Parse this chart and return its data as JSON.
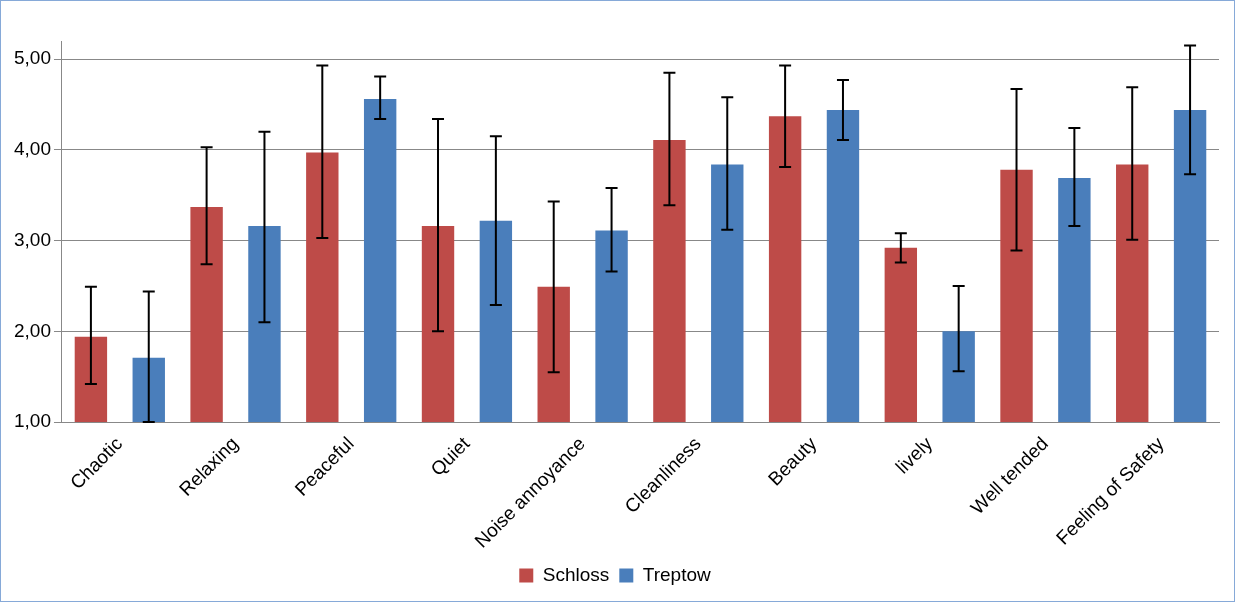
{
  "chart_data": {
    "type": "bar",
    "categories": [
      "Chaotic",
      "Relaxing",
      "Peaceful",
      "Quiet",
      "Noise annoyance",
      "Cleanliness",
      "Beauty",
      "lively",
      "Well tended",
      "Feeling of Safety"
    ],
    "series": [
      {
        "name": "Schloss",
        "color": "#be4b48",
        "values": [
          1.94,
          3.37,
          3.97,
          3.16,
          2.49,
          4.11,
          4.37,
          2.92,
          3.78,
          3.84
        ],
        "errors": [
          [
            1.42,
            2.49
          ],
          [
            2.74,
            4.03
          ],
          [
            3.03,
            4.93
          ],
          [
            2.0,
            4.34
          ],
          [
            1.55,
            3.43
          ],
          [
            3.39,
            4.85
          ],
          [
            3.81,
            4.93
          ],
          [
            2.76,
            3.08
          ],
          [
            2.89,
            4.67
          ],
          [
            3.01,
            4.69
          ]
        ]
      },
      {
        "name": "Treptow",
        "color": "#4a7ebb",
        "values": [
          1.71,
          3.16,
          4.56,
          3.22,
          3.11,
          3.84,
          4.44,
          2.0,
          3.69,
          4.44
        ],
        "errors": [
          [
            1.0,
            2.44
          ],
          [
            2.1,
            4.2
          ],
          [
            4.34,
            4.81
          ],
          [
            2.29,
            4.15
          ],
          [
            2.66,
            3.58
          ],
          [
            3.12,
            4.58
          ],
          [
            4.11,
            4.77
          ],
          [
            1.56,
            2.5
          ],
          [
            3.16,
            4.24
          ],
          [
            3.73,
            5.15
          ]
        ]
      }
    ],
    "ylim": [
      1,
      5.2
    ],
    "yticks": [
      {
        "value": 1,
        "label": "1,00"
      },
      {
        "value": 2,
        "label": "2,00"
      },
      {
        "value": 3,
        "label": "3,00"
      },
      {
        "value": 4,
        "label": "4,00"
      },
      {
        "value": 5,
        "label": "5,00"
      }
    ],
    "grid": "y",
    "legend": "bottom"
  }
}
